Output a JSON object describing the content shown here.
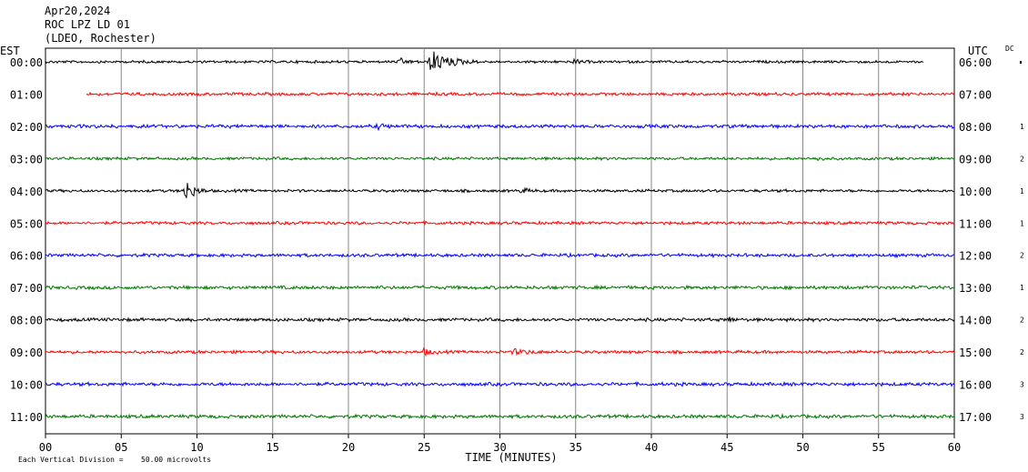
{
  "header": {
    "date": "Apr20,2024",
    "station": "ROC LPZ LD 01",
    "network": "(LDEO, Rochester)"
  },
  "left_zone_label": "EST",
  "right_zone_label": "UTC",
  "dc_label": "DC",
  "footer": {
    "scale_prefix": "Each Vertical Division =",
    "scale_value": "50.00 microvolts"
  },
  "chart_data": {
    "type": "line",
    "title": "",
    "xlabel": "TIME (MINUTES)",
    "ylabel": "",
    "xlim": [
      0,
      60
    ],
    "x_ticks": [
      "00",
      "05",
      "10",
      "15",
      "20",
      "25",
      "30",
      "35",
      "40",
      "45",
      "50",
      "55",
      "60"
    ],
    "grid": true,
    "colors": [
      "#000000",
      "#ff0000",
      "#0000ff",
      "#007700"
    ],
    "rows": [
      {
        "est": "00:00",
        "utc": "06:00",
        "dc": "",
        "start_min": 0,
        "end_min": 58,
        "noise": 1.2,
        "events": [
          {
            "t": 25.5,
            "amp": 12,
            "dur": 3.2
          },
          {
            "t": 23.5,
            "amp": 3,
            "dur": 1.5
          },
          {
            "t": 35,
            "amp": 2.5,
            "dur": 1
          }
        ]
      },
      {
        "est": "01:00",
        "utc": "07:00",
        "dc": "",
        "start_min": 2.7,
        "end_min": 60,
        "noise": 1.4,
        "events": []
      },
      {
        "est": "02:00",
        "utc": "08:00",
        "dc": "1",
        "start_min": 0,
        "end_min": 60,
        "noise": 1.6,
        "events": [
          {
            "t": 22,
            "amp": 2,
            "dur": 1.5
          }
        ]
      },
      {
        "est": "03:00",
        "utc": "09:00",
        "dc": "2",
        "start_min": 0,
        "end_min": 60,
        "noise": 1.3,
        "events": [
          {
            "t": 51,
            "amp": 2,
            "dur": 1
          }
        ]
      },
      {
        "est": "04:00",
        "utc": "10:00",
        "dc": "1",
        "start_min": 0,
        "end_min": 60,
        "noise": 1.3,
        "events": [
          {
            "t": 9.3,
            "amp": 11,
            "dur": 1.5
          },
          {
            "t": 31.5,
            "amp": 2.5,
            "dur": 1
          }
        ]
      },
      {
        "est": "05:00",
        "utc": "11:00",
        "dc": "1",
        "start_min": 0,
        "end_min": 60,
        "noise": 1.4,
        "events": []
      },
      {
        "est": "06:00",
        "utc": "12:00",
        "dc": "2",
        "start_min": 0,
        "end_min": 60,
        "noise": 1.5,
        "events": []
      },
      {
        "est": "07:00",
        "utc": "13:00",
        "dc": "1",
        "start_min": 0,
        "end_min": 60,
        "noise": 1.6,
        "events": []
      },
      {
        "est": "08:00",
        "utc": "14:00",
        "dc": "2",
        "start_min": 0,
        "end_min": 60,
        "noise": 1.5,
        "events": [
          {
            "t": 45.2,
            "amp": 3,
            "dur": 0.6
          }
        ]
      },
      {
        "est": "09:00",
        "utc": "15:00",
        "dc": "2",
        "start_min": 0,
        "end_min": 60,
        "noise": 1.4,
        "events": [
          {
            "t": 25,
            "amp": 3,
            "dur": 1.5
          },
          {
            "t": 31,
            "amp": 2.5,
            "dur": 3
          }
        ]
      },
      {
        "est": "10:00",
        "utc": "16:00",
        "dc": "3",
        "start_min": 0,
        "end_min": 60,
        "noise": 1.6,
        "events": []
      },
      {
        "est": "11:00",
        "utc": "17:00",
        "dc": "3",
        "start_min": 0,
        "end_min": 60,
        "noise": 1.6,
        "events": []
      }
    ]
  }
}
